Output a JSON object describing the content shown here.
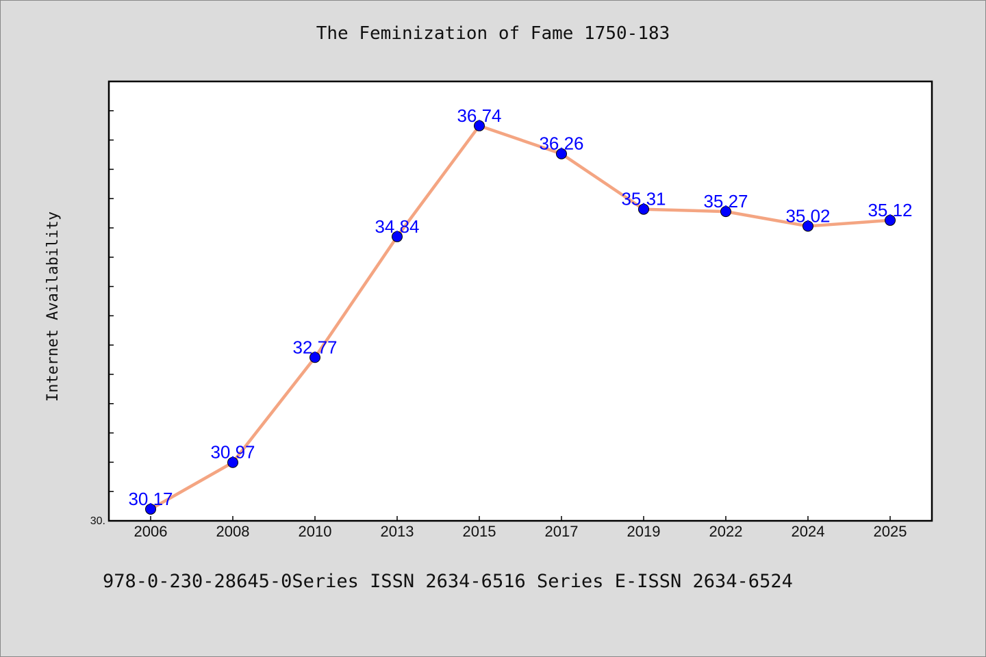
{
  "chart_data": {
    "type": "line",
    "title": "The Feminization of Fame 1750-183",
    "xlabel": "",
    "ylabel": "Internet Availability",
    "categories": [
      "2006",
      "2008",
      "2010",
      "2013",
      "2015",
      "2017",
      "2019",
      "2022",
      "2024",
      "2025"
    ],
    "series": [
      {
        "values": [
          30.17,
          30.97,
          32.77,
          34.84,
          36.74,
          36.26,
          35.31,
          35.27,
          35.02,
          35.12
        ],
        "labels": [
          "30.17",
          "30.97",
          "32.77",
          "34.84",
          "36.74",
          "36.26",
          "35.31",
          "35.27",
          "35.02",
          "35.12"
        ],
        "line_color": "#f4a582",
        "marker_color": "#0000ff"
      }
    ],
    "ylim": [
      29.97,
      37.5
    ],
    "y_min_label": "30.",
    "grid": false,
    "legend": "none"
  },
  "footer": {
    "text": "978-0-230-28645-0Series ISSN 2634-6516 Series E-ISSN 2634-6524"
  }
}
